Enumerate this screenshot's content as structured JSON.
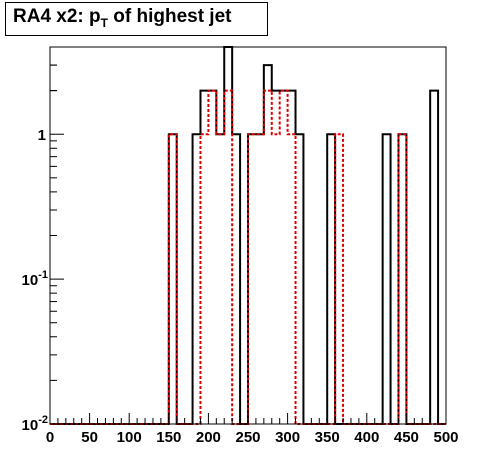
{
  "title": {
    "main": "RA4 x2: p",
    "sub": "T",
    "rest": " of highest jet"
  },
  "chart_data": {
    "type": "histogram",
    "title": "RA4 x2: pT of highest jet",
    "xlabel": "",
    "ylabel": "",
    "xlim": [
      0,
      500
    ],
    "ylim": [
      0.01,
      4
    ],
    "yscale": "log",
    "grid": false,
    "legend": "none",
    "x_ticks": [
      0,
      50,
      100,
      150,
      200,
      250,
      300,
      350,
      400,
      450,
      500
    ],
    "y_ticks": [
      {
        "value": 0.01,
        "base": "10",
        "exp": "-2"
      },
      {
        "value": 0.1,
        "base": "10",
        "exp": "-1"
      },
      {
        "value": 1,
        "base": "1",
        "exp": ""
      }
    ],
    "bin_width": 10,
    "series": [
      {
        "color": "#000000",
        "style": "solid",
        "bins": [
          {
            "x0": 150,
            "value": 1
          },
          {
            "x0": 180,
            "value": 1
          },
          {
            "x0": 190,
            "value": 2
          },
          {
            "x0": 200,
            "value": 2
          },
          {
            "x0": 210,
            "value": 1
          },
          {
            "x0": 220,
            "value": 4
          },
          {
            "x0": 230,
            "value": 1
          },
          {
            "x0": 250,
            "value": 1
          },
          {
            "x0": 260,
            "value": 1
          },
          {
            "x0": 270,
            "value": 3
          },
          {
            "x0": 280,
            "value": 2
          },
          {
            "x0": 290,
            "value": 2
          },
          {
            "x0": 300,
            "value": 2
          },
          {
            "x0": 310,
            "value": 1
          },
          {
            "x0": 350,
            "value": 1
          },
          {
            "x0": 420,
            "value": 1
          },
          {
            "x0": 440,
            "value": 1
          },
          {
            "x0": 480,
            "value": 2
          }
        ]
      },
      {
        "color": "#dd0000",
        "style": "dotted",
        "bins": [
          {
            "x0": 150,
            "value": 1
          },
          {
            "x0": 190,
            "value": 1
          },
          {
            "x0": 200,
            "value": 2
          },
          {
            "x0": 210,
            "value": 1
          },
          {
            "x0": 220,
            "value": 2
          },
          {
            "x0": 250,
            "value": 1
          },
          {
            "x0": 260,
            "value": 1
          },
          {
            "x0": 270,
            "value": 2
          },
          {
            "x0": 280,
            "value": 1
          },
          {
            "x0": 290,
            "value": 2
          },
          {
            "x0": 300,
            "value": 1
          },
          {
            "x0": 360,
            "value": 1
          },
          {
            "x0": 440,
            "value": 1
          }
        ]
      }
    ]
  }
}
